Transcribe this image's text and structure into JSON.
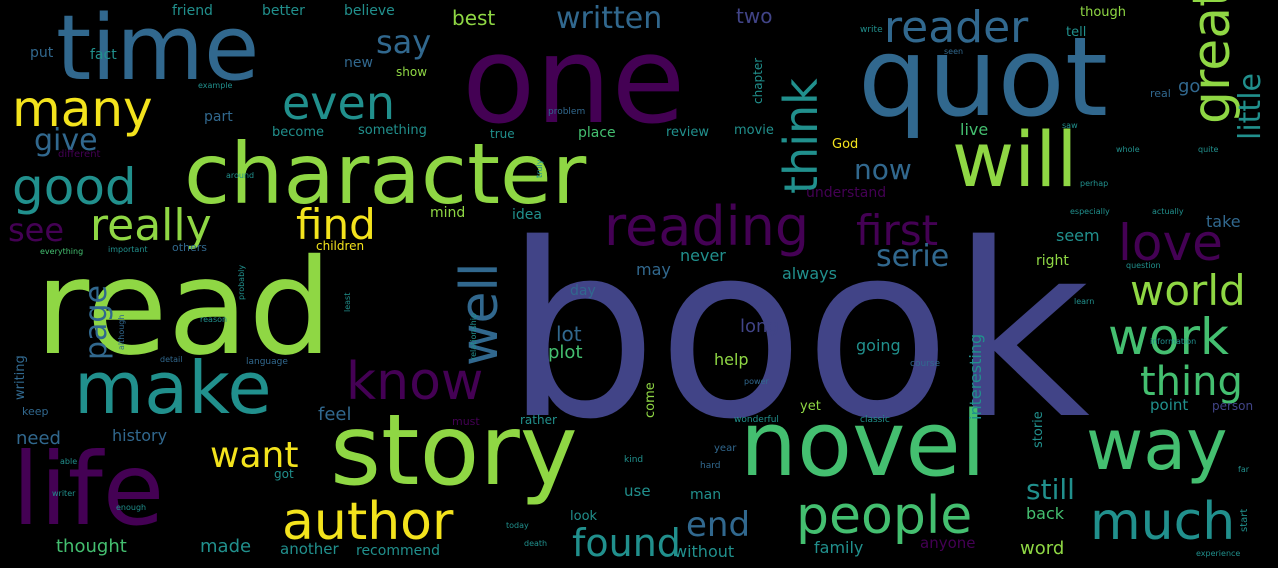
{
  "palette": {
    "background": "#000000",
    "yellow": "#f3e31d",
    "lime": "#8fd744",
    "green": "#44bf70",
    "teal": "#21908d",
    "steel": "#31688e",
    "indigo": "#414487",
    "purple": "#440154"
  },
  "words": [
    "book",
    "read",
    "one",
    "quot",
    "time",
    "character",
    "will",
    "story",
    "novel",
    "life",
    "make",
    "way",
    "author",
    "people",
    "much",
    "reading",
    "great",
    "good",
    "reader",
    "know",
    "many",
    "even",
    "love",
    "really",
    "find",
    "think",
    "well",
    "first",
    "world",
    "work",
    "thing",
    "found",
    "want",
    "end",
    "still",
    "say",
    "written",
    "little",
    "see",
    "give",
    "serie",
    "page",
    "now",
    "go",
    "two",
    "best",
    "lot",
    "plot",
    "feel",
    "need",
    "history",
    "thought",
    "made",
    "another",
    "recommend",
    "without",
    "family",
    "anyone",
    "word",
    "back",
    "point",
    "person",
    "help",
    "going",
    "long",
    "may",
    "never",
    "always",
    "day",
    "idea",
    "mind",
    "children",
    "others",
    "seem",
    "right",
    "take",
    "understand",
    "God",
    "live",
    "movie",
    "review",
    "place",
    "true",
    "something",
    "become",
    "part",
    "different",
    "fact",
    "put",
    "new",
    "show",
    "friend",
    "better",
    "believe",
    "though",
    "tell",
    "write",
    "chapter",
    "real",
    "writing",
    "keep",
    "use",
    "look",
    "man",
    "come",
    "yet",
    "must",
    "rather",
    "interesting",
    "storie",
    "got",
    "year",
    "wonderful",
    "classic",
    "kind",
    "hard",
    "course",
    "important",
    "everything",
    "example",
    "question",
    "information",
    "relationship",
    "language",
    "detail",
    "reason",
    "probably",
    "although",
    "least",
    "problem",
    "truly",
    "around",
    "power",
    "perhap",
    "experience",
    "especially",
    "actually",
    "enough",
    "today",
    "death",
    "start",
    "writer",
    "able",
    "far",
    "seen",
    "learn",
    "quite",
    "whole",
    "saw"
  ]
}
